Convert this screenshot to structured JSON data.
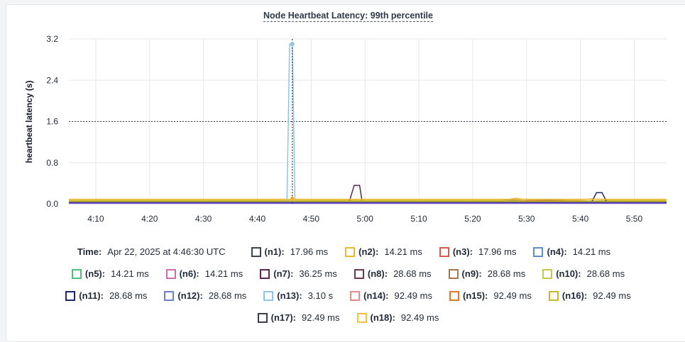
{
  "chart_data": {
    "type": "line",
    "title": "Node Heartbeat Latency: 99th percentile",
    "ylabel": "heartbeat latency (s)",
    "xlabel": "",
    "x_ticks": [
      "4:10",
      "4:20",
      "4:30",
      "4:40",
      "4:50",
      "5:00",
      "5:10",
      "5:20",
      "5:30",
      "5:40",
      "5:50"
    ],
    "y_ticks": [
      "0.0",
      "0.8",
      "1.6",
      "2.4",
      "3.2"
    ],
    "ylim": [
      0,
      3.2
    ],
    "threshold": 1.6,
    "grid": true,
    "cursor_x": "4:46:30",
    "series": [
      {
        "name": "n1",
        "color": "#3b4452",
        "value": "17.96 ms",
        "points": [
          [
            4.1,
            0.01
          ],
          [
            4.46,
            0.01
          ],
          [
            4.465,
            0.03
          ],
          [
            4.47,
            0.01
          ],
          [
            5.27,
            0.01
          ],
          [
            5.32,
            0.04
          ],
          [
            5.36,
            0.02
          ],
          [
            5.44,
            0.03
          ],
          [
            5.52,
            0.01
          ],
          [
            5.56,
            0.01
          ]
        ]
      },
      {
        "name": "n2",
        "color": "#e8b830",
        "value": "14.21 ms",
        "points": [
          [
            4.05,
            0.08
          ],
          [
            4.46,
            0.08
          ],
          [
            4.465,
            0.14
          ],
          [
            4.47,
            0.08
          ],
          [
            5.26,
            0.08
          ],
          [
            5.28,
            0.11
          ],
          [
            5.3,
            0.08
          ],
          [
            5.4,
            0.08
          ],
          [
            5.42,
            0.1
          ],
          [
            5.45,
            0.08
          ],
          [
            5.56,
            0.08
          ]
        ]
      },
      {
        "name": "n3",
        "color": "#d9594c",
        "value": "17.96 ms",
        "points": [
          [
            4.05,
            0.03
          ],
          [
            5.25,
            0.03
          ],
          [
            5.4,
            0.05
          ],
          [
            5.56,
            0.03
          ]
        ]
      },
      {
        "name": "n4",
        "color": "#5b8fc7",
        "value": "14.21 ms",
        "points": [
          [
            4.05,
            0.02
          ],
          [
            5.56,
            0.02
          ]
        ]
      },
      {
        "name": "n5",
        "color": "#4cc27f",
        "value": "14.21 ms",
        "points": [
          [
            4.05,
            0.02
          ],
          [
            5.56,
            0.02
          ]
        ]
      },
      {
        "name": "n6",
        "color": "#c86fb3",
        "value": "14.21 ms",
        "points": [
          [
            4.05,
            0.02
          ],
          [
            5.56,
            0.02
          ]
        ]
      },
      {
        "name": "n7",
        "color": "#5a2751",
        "value": "36.25 ms",
        "points": [
          [
            4.05,
            0.02
          ],
          [
            4.57,
            0.02
          ],
          [
            4.58,
            0.36
          ],
          [
            4.59,
            0.36
          ],
          [
            4.595,
            0.02
          ],
          [
            5.56,
            0.02
          ]
        ]
      },
      {
        "name": "n8",
        "color": "#6b3a4f",
        "value": "28.68 ms",
        "points": [
          [
            4.05,
            0.02
          ],
          [
            5.32,
            0.02
          ],
          [
            5.34,
            0.07
          ],
          [
            5.36,
            0.02
          ],
          [
            5.56,
            0.02
          ]
        ]
      },
      {
        "name": "n9",
        "color": "#a8744a",
        "value": "28.68 ms",
        "points": [
          [
            4.05,
            0.06
          ],
          [
            5.25,
            0.06
          ],
          [
            5.3,
            0.09
          ],
          [
            5.38,
            0.06
          ],
          [
            5.56,
            0.06
          ]
        ]
      },
      {
        "name": "n10",
        "color": "#c3c94a",
        "value": "28.68 ms",
        "points": [
          [
            4.05,
            0.06
          ],
          [
            5.56,
            0.06
          ]
        ]
      },
      {
        "name": "n11",
        "color": "#1f2a6b",
        "value": "28.68 ms",
        "points": [
          [
            4.05,
            0.02
          ],
          [
            5.42,
            0.02
          ],
          [
            5.43,
            0.22
          ],
          [
            5.44,
            0.22
          ],
          [
            5.45,
            0.02
          ],
          [
            5.56,
            0.02
          ]
        ]
      },
      {
        "name": "n12",
        "color": "#6a7fd6",
        "value": "28.68 ms",
        "points": [
          [
            4.05,
            0.01
          ],
          [
            5.56,
            0.01
          ]
        ]
      },
      {
        "name": "n13",
        "color": "#8fc3ea",
        "value": "3.10 s",
        "points": [
          [
            4.05,
            0.01
          ],
          [
            4.455,
            0.01
          ],
          [
            4.46,
            3.1
          ],
          [
            4.465,
            3.1
          ],
          [
            4.47,
            0.01
          ],
          [
            5.56,
            0.01
          ]
        ]
      },
      {
        "name": "n14",
        "color": "#ee8a85",
        "value": "92.49 ms",
        "points": [
          [
            4.05,
            0.04
          ],
          [
            5.56,
            0.04
          ]
        ]
      },
      {
        "name": "n15",
        "color": "#e0782c",
        "value": "92.49 ms",
        "points": [
          [
            4.05,
            0.04
          ],
          [
            5.26,
            0.04
          ],
          [
            5.3,
            0.06
          ],
          [
            5.56,
            0.04
          ]
        ]
      },
      {
        "name": "n16",
        "color": "#c9b62d",
        "value": "92.49 ms",
        "points": [
          [
            4.05,
            0.05
          ],
          [
            5.56,
            0.05
          ]
        ]
      },
      {
        "name": "n17",
        "color": "#3a3f47",
        "value": "92.49 ms",
        "points": [
          [
            4.05,
            0.03
          ],
          [
            5.56,
            0.03
          ]
        ]
      },
      {
        "name": "n18",
        "color": "#f0c040",
        "value": "92.49 ms",
        "points": [
          [
            4.05,
            0.09
          ],
          [
            5.56,
            0.09
          ]
        ]
      }
    ]
  },
  "legend": {
    "time_label": "Time:",
    "time_value": "Apr 22, 2025 at 4:46:30 UTC",
    "items": [
      {
        "label": "(n1):",
        "value": "17.96 ms",
        "color": "#3b4452"
      },
      {
        "label": "(n2):",
        "value": "14.21 ms",
        "color": "#e8b830"
      },
      {
        "label": "(n3):",
        "value": "17.96 ms",
        "color": "#d9594c"
      },
      {
        "label": "(n4):",
        "value": "14.21 ms",
        "color": "#5b8fc7"
      },
      {
        "label": "(n5):",
        "value": "14.21 ms",
        "color": "#4cc27f"
      },
      {
        "label": "(n6):",
        "value": "14.21 ms",
        "color": "#c86fb3"
      },
      {
        "label": "(n7):",
        "value": "36.25 ms",
        "color": "#5a2751"
      },
      {
        "label": "(n8):",
        "value": "28.68 ms",
        "color": "#6b3a4f"
      },
      {
        "label": "(n9):",
        "value": "28.68 ms",
        "color": "#a8744a"
      },
      {
        "label": "(n10):",
        "value": "28.68 ms",
        "color": "#c3c94a"
      },
      {
        "label": "(n11):",
        "value": "28.68 ms",
        "color": "#1f2a6b"
      },
      {
        "label": "(n12):",
        "value": "28.68 ms",
        "color": "#6a7fd6"
      },
      {
        "label": "(n13):",
        "value": "3.10 s",
        "color": "#8fc3ea"
      },
      {
        "label": "(n14):",
        "value": "92.49 ms",
        "color": "#ee8a85"
      },
      {
        "label": "(n15):",
        "value": "92.49 ms",
        "color": "#e0782c"
      },
      {
        "label": "(n16):",
        "value": "92.49 ms",
        "color": "#c9b62d"
      },
      {
        "label": "(n17):",
        "value": "92.49 ms",
        "color": "#3a3f47"
      },
      {
        "label": "(n18):",
        "value": "92.49 ms",
        "color": "#f0c040"
      }
    ]
  }
}
